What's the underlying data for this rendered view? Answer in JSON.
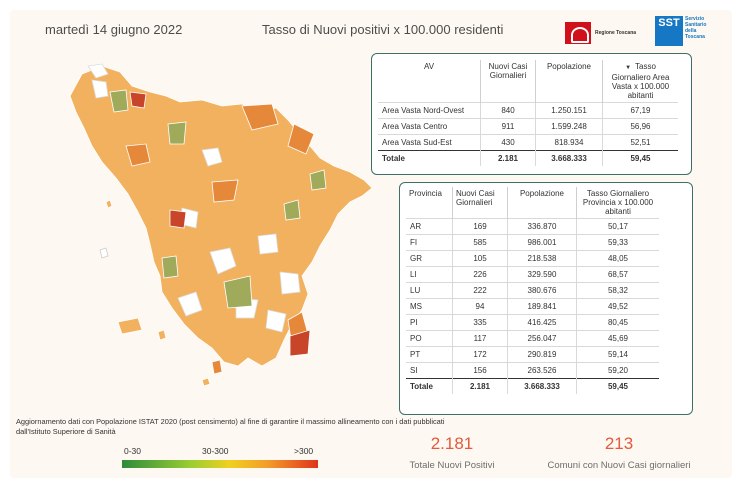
{
  "header": {
    "date": "martedì 14 giugno 2022",
    "title": "Tasso di Nuovi positivi x 100.000 residenti",
    "logo_regione": "Regione Toscana",
    "logo_sst_badge": "SST",
    "logo_sst_line1": "Servizio",
    "logo_sst_line2": "Sanitario",
    "logo_sst_line3": "della",
    "logo_sst_line4": "Toscana"
  },
  "av_table": {
    "headers": {
      "av": "AV",
      "casi": "Nuovi Casi Giornalieri",
      "pop": "Popolazione",
      "tasso": "Tasso Giornaliero Area Vasta x 100.000 abitanti"
    },
    "rows": [
      {
        "name": "Area Vasta Nord-Ovest",
        "casi": "840",
        "pop": "1.250.151",
        "tasso": "67,19"
      },
      {
        "name": "Area Vasta Centro",
        "casi": "911",
        "pop": "1.599.248",
        "tasso": "56,96"
      },
      {
        "name": "Area Vasta Sud-Est",
        "casi": "430",
        "pop": "818.934",
        "tasso": "52,51"
      }
    ],
    "total": {
      "name": "Totale",
      "casi": "2.181",
      "pop": "3.668.333",
      "tasso": "59,45"
    }
  },
  "prov_table": {
    "headers": {
      "prov": "Provincia",
      "casi": "Nuovi Casi Giornalieri",
      "pop": "Popolazione",
      "tasso": "Tasso Giornaliero Provincia x 100.000 abitanti"
    },
    "rows": [
      {
        "name": "AR",
        "casi": "169",
        "pop": "336.870",
        "tasso": "50,17"
      },
      {
        "name": "FI",
        "casi": "585",
        "pop": "986.001",
        "tasso": "59,33"
      },
      {
        "name": "GR",
        "casi": "105",
        "pop": "218.538",
        "tasso": "48,05"
      },
      {
        "name": "LI",
        "casi": "226",
        "pop": "329.590",
        "tasso": "68,57"
      },
      {
        "name": "LU",
        "casi": "222",
        "pop": "380.676",
        "tasso": "58,32"
      },
      {
        "name": "MS",
        "casi": "94",
        "pop": "189.841",
        "tasso": "49,52"
      },
      {
        "name": "PI",
        "casi": "335",
        "pop": "416.425",
        "tasso": "80,45"
      },
      {
        "name": "PO",
        "casi": "117",
        "pop": "256.047",
        "tasso": "45,69"
      },
      {
        "name": "PT",
        "casi": "172",
        "pop": "290.819",
        "tasso": "59,14"
      },
      {
        "name": "SI",
        "casi": "156",
        "pop": "263.526",
        "tasso": "59,20"
      }
    ],
    "total": {
      "name": "Totale",
      "casi": "2.181",
      "pop": "3.668.333",
      "tasso": "59,45"
    }
  },
  "note": "Aggiornamento dati con Popolazione ISTAT 2020 (post censimento) al fine di garantire il massimo allineamento con i dati pubblicati dall'Istituto Superiore di Sanità",
  "legend": {
    "low": "0-30",
    "mid": "30-300",
    "high": ">300"
  },
  "kpis": {
    "total_value": "2.181",
    "total_label": "Totale Nuovi Positivi",
    "comuni_value": "213",
    "comuni_label": "Comuni con Nuovi Casi giornalieri"
  },
  "colors": {
    "accent": "#e35a3c",
    "card_border": "#3f6f68",
    "map_orange": "#f2b15e",
    "map_dark_orange": "#e6883a",
    "map_green": "#9fab5a",
    "map_red": "#c8452a"
  }
}
